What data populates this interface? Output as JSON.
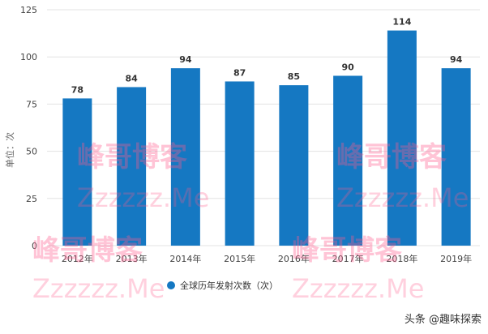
{
  "chart_data": {
    "type": "bar",
    "categories": [
      "2012年",
      "2013年",
      "2014年",
      "2015年",
      "2016年",
      "2017年",
      "2018年",
      "2019年"
    ],
    "series": [
      {
        "name": "全球历年发射次数（次）",
        "values": [
          78,
          84,
          94,
          87,
          85,
          90,
          114,
          94
        ]
      }
    ],
    "ylabel": "单位：次",
    "yticks": [
      0,
      25,
      50,
      75,
      100,
      125
    ],
    "ylim": [
      0,
      125
    ],
    "grid": true,
    "legend": "bottom",
    "color": "#1578c2"
  },
  "watermarks": [
    {
      "text": "峰哥博客",
      "sub": "Zzzzzz.Me"
    },
    {
      "text": "峰哥博客",
      "sub": "Zzzzzz.Me"
    }
  ],
  "credit": "头条 @趣味探索"
}
